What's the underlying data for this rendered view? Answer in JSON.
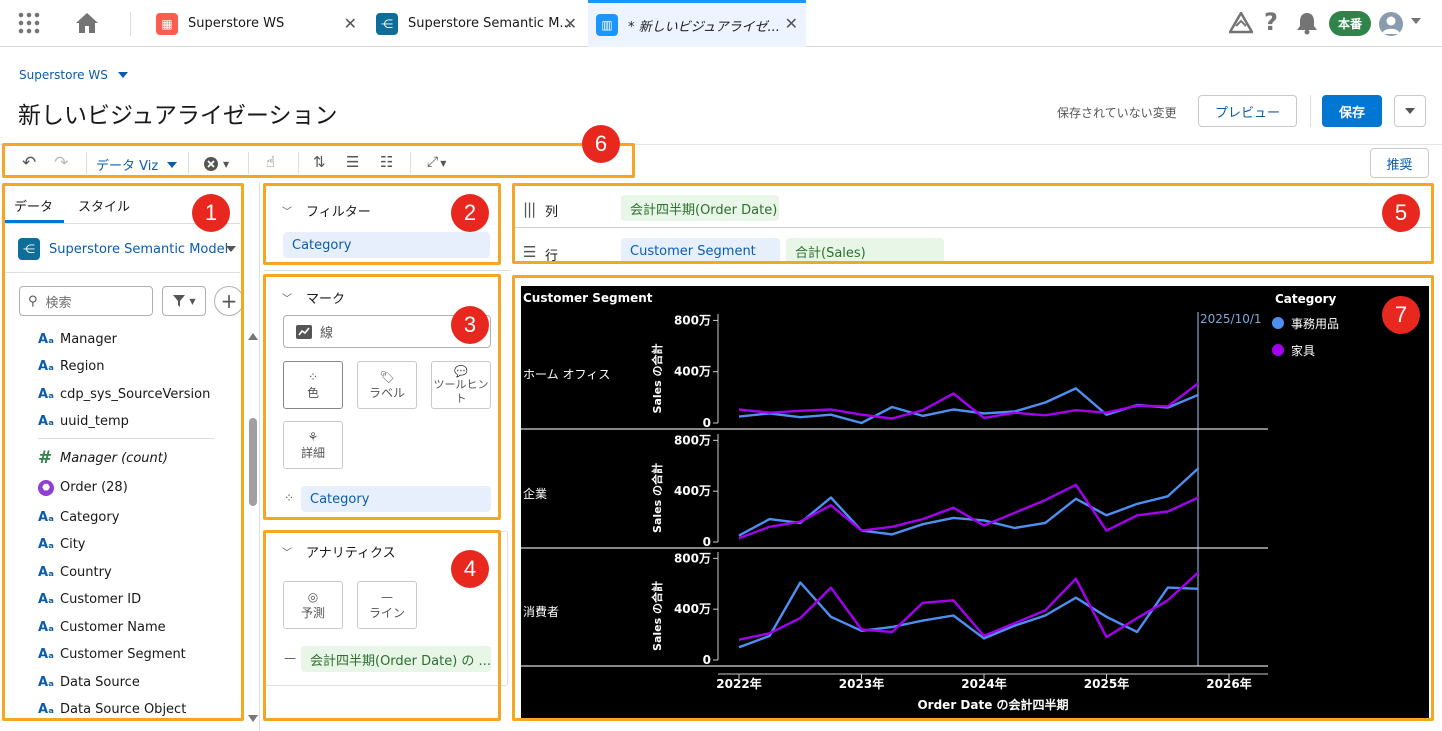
{
  "tabs": [
    {
      "label": "Superstore WS",
      "icon": "workspace-icon",
      "color": "#fe5c4c"
    },
    {
      "label": "Superstore Semantic M...",
      "icon": "semantic-model-icon",
      "color": "#0d6e9a"
    },
    {
      "label": "* 新しいビジュアライゼ...",
      "icon": "chart-icon",
      "color": "#1b96ff"
    }
  ],
  "top_right": {
    "env_badge": "本番"
  },
  "header": {
    "breadcrumb": "Superstore WS",
    "title": "新しいビジュアライゼーション",
    "unsaved": "保存されていない変更",
    "preview": "プレビュー",
    "save": "保存"
  },
  "toolbar": {
    "data_viz": "データ Viz",
    "recommend": "推奨"
  },
  "data_panel": {
    "tabs": [
      "データ",
      "スタイル"
    ],
    "model": "Superstore Semantic Model",
    "search_placeholder": "検索",
    "fields_top": [
      "Manager",
      "Region",
      "cdp_sys_SourceVersion",
      "uuid_temp"
    ],
    "measure": "Manager (count)",
    "object": "Order (28)",
    "fields": [
      "Category",
      "City",
      "Country",
      "Customer ID",
      "Customer Name",
      "Customer Segment",
      "Data Source",
      "Data Source Object"
    ]
  },
  "filters": {
    "title": "フィルター",
    "pill": "Category"
  },
  "marks": {
    "title": "マーク",
    "type": "線",
    "color": "色",
    "label": "ラベル",
    "tooltip": "ツールヒント",
    "detail": "詳細",
    "pill": "Category"
  },
  "analytics": {
    "title": "アナリティクス",
    "forecast": "予測",
    "line": "ライン",
    "pill": "会計四半期(Order Date) の ..."
  },
  "shelves": {
    "columns_label": "列",
    "columns_pill": "会計四半期(Order Date)",
    "rows_label": "行",
    "rows_pill1": "Customer Segment",
    "rows_pill2": "合計(Sales)"
  },
  "badges": [
    "1",
    "2",
    "3",
    "4",
    "5",
    "6",
    "7"
  ],
  "chart_data": {
    "type": "line",
    "row_header": "Customer Segment",
    "xlabel": "Order Date の会計四半期",
    "ylabel": "Sales の合計",
    "x_ticks": [
      "2022年",
      "2023年",
      "2024年",
      "2025年",
      "2026年"
    ],
    "y_ticks": [
      "0",
      "400万",
      "800万"
    ],
    "ylim": [
      0,
      8500000
    ],
    "legend_title": "Category",
    "reference_label": "2025/10/1",
    "series_colors": {
      "事務用品": "#4e8ff2",
      "家具": "#a400f0"
    },
    "panels": [
      {
        "segment": "ホーム オフィス",
        "series": [
          {
            "name": "事務用品",
            "values": [
              500000,
              750000,
              450000,
              650000,
              0,
              1250000,
              550000,
              1050000,
              750000,
              900000,
              1600000,
              2700000,
              650000,
              1400000,
              1200000,
              2200000
            ]
          },
          {
            "name": "家具",
            "values": [
              1050000,
              800000,
              950000,
              1050000,
              650000,
              350000,
              1000000,
              2300000,
              400000,
              800000,
              600000,
              1000000,
              800000,
              1350000,
              1300000,
              3100000
            ]
          }
        ]
      },
      {
        "segment": "企業",
        "series": [
          {
            "name": "事務用品",
            "values": [
              500000,
              1800000,
              1500000,
              3500000,
              900000,
              600000,
              1400000,
              1900000,
              1700000,
              1100000,
              1500000,
              3400000,
              2100000,
              3000000,
              3600000,
              5800000
            ]
          },
          {
            "name": "家具",
            "values": [
              300000,
              1200000,
              1600000,
              2900000,
              900000,
              1200000,
              1800000,
              2700000,
              1300000,
              2300000,
              3300000,
              4500000,
              900000,
              2100000,
              2400000,
              3500000
            ]
          }
        ]
      },
      {
        "segment": "消費者",
        "series": [
          {
            "name": "事務用品",
            "values": [
              1000000,
              1900000,
              6100000,
              3400000,
              2300000,
              2600000,
              3100000,
              3500000,
              1700000,
              2700000,
              3500000,
              4900000,
              3400000,
              2200000,
              5700000,
              5600000
            ]
          },
          {
            "name": "家具",
            "values": [
              1600000,
              2100000,
              3300000,
              5700000,
              2400000,
              2200000,
              4500000,
              4700000,
              1900000,
              2900000,
              3900000,
              6400000,
              1800000,
              3300000,
              4700000,
              6900000
            ]
          }
        ]
      }
    ]
  }
}
